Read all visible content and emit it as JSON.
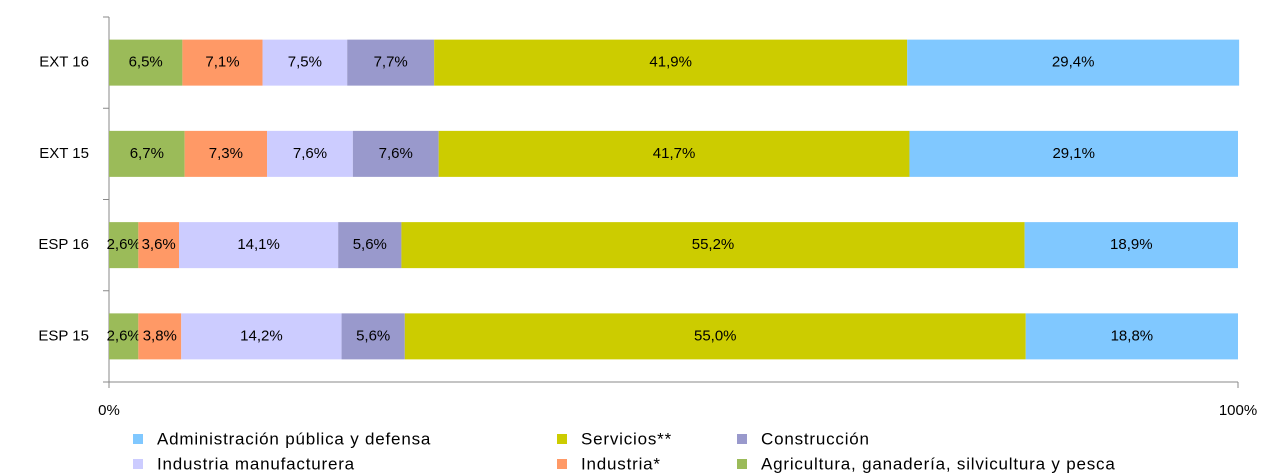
{
  "chart_data": {
    "type": "stacked_bar_horizontal",
    "categories": [
      "EXT 16",
      "EXT 15",
      "ESP 16",
      "ESP 15"
    ],
    "series": [
      {
        "name": "Agricultura, ganadería, silvicultura y pesca",
        "color": "#9bbb59",
        "values": [
          6.5,
          6.7,
          2.6,
          2.6
        ],
        "value_labels": [
          "6,5%",
          "6,7%",
          "2,6%",
          "2,6%"
        ]
      },
      {
        "name": "Industria*",
        "color": "#ff9966",
        "values": [
          7.1,
          7.3,
          3.6,
          3.8
        ],
        "value_labels": [
          "7,1%",
          "7,3%",
          "3,6%",
          "3,8%"
        ]
      },
      {
        "name": "Industria manufacturera",
        "color": "#ccccff",
        "values": [
          7.5,
          7.6,
          14.1,
          14.2
        ],
        "value_labels": [
          "7,5%",
          "7,6%",
          "14,1%",
          "14,2%"
        ]
      },
      {
        "name": "Construcción",
        "color": "#9999cc",
        "values": [
          7.7,
          7.6,
          5.6,
          5.6
        ],
        "value_labels": [
          "7,7%",
          "7,6%",
          "5,6%",
          "5,6%"
        ]
      },
      {
        "name": "Servicios**",
        "color": "#cccc00",
        "values": [
          41.9,
          41.7,
          55.2,
          55.0
        ],
        "value_labels": [
          "41,9%",
          "41,7%",
          "55,2%",
          "55,0%"
        ]
      },
      {
        "name": "Administración pública y defensa",
        "color": "#80c8ff",
        "values": [
          29.4,
          29.1,
          18.9,
          18.8
        ],
        "value_labels": [
          "29,4%",
          "29,1%",
          "18,9%",
          "18,8%"
        ]
      }
    ],
    "xlim": [
      0,
      100
    ],
    "xticks": [
      {
        "value": 0,
        "label": "0%"
      },
      {
        "value": 100,
        "label": "100%"
      }
    ],
    "legend": "bottom"
  }
}
